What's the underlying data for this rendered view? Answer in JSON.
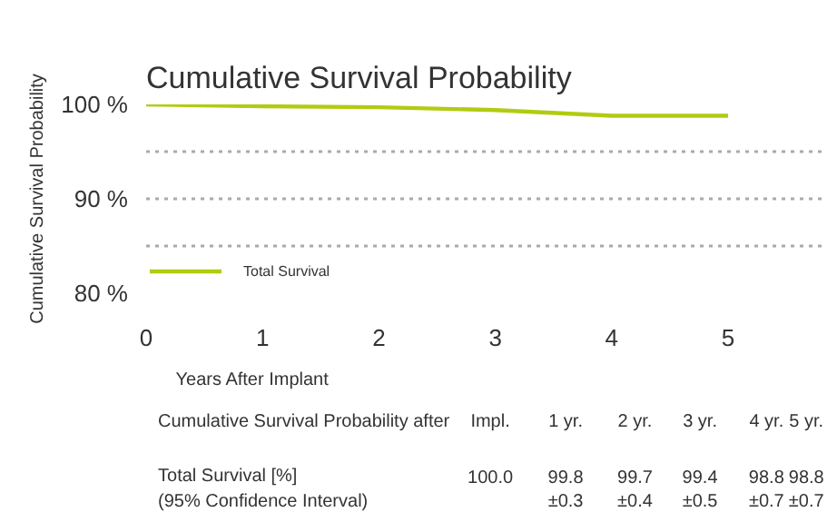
{
  "chart_data": {
    "type": "line",
    "title": "Cumulative Survival Probability",
    "xlabel": "Years After Implant",
    "ylabel": "Cumulative Survival Probability",
    "x": [
      0,
      1,
      2,
      3,
      4,
      5
    ],
    "series": [
      {
        "name": "Total Survival",
        "color": "#b2cb12",
        "values": [
          100.0,
          99.8,
          99.7,
          99.4,
          98.8,
          98.8
        ]
      }
    ],
    "xlim": [
      0,
      5.85
    ],
    "xticks": [
      0,
      1,
      2,
      3,
      4,
      5
    ],
    "ylim": [
      80,
      100
    ],
    "yticks": [
      {
        "value": 80,
        "label": "80 %"
      },
      {
        "value": 85,
        "label": null
      },
      {
        "value": 90,
        "label": "90 %"
      },
      {
        "value": 95,
        "label": null
      },
      {
        "value": 100,
        "label": "100 %"
      }
    ],
    "grid": "y",
    "legend": "bottom left",
    "line_style": "solid",
    "marker": "none",
    "annotations": [
      "Cumulative Survival Probability after",
      "Impl.",
      "1 yr.",
      "2 yr.",
      "3 yr.",
      "4 yr.",
      "5 yr.",
      "Total Survival [%]",
      "(95% Confidence Interval)",
      "100.0",
      "99.8",
      "99.7",
      "99.4",
      "98.8",
      "98.8",
      "±0.3",
      "±0.4",
      "±0.5",
      "±0.7",
      "±0.7"
    ]
  }
}
